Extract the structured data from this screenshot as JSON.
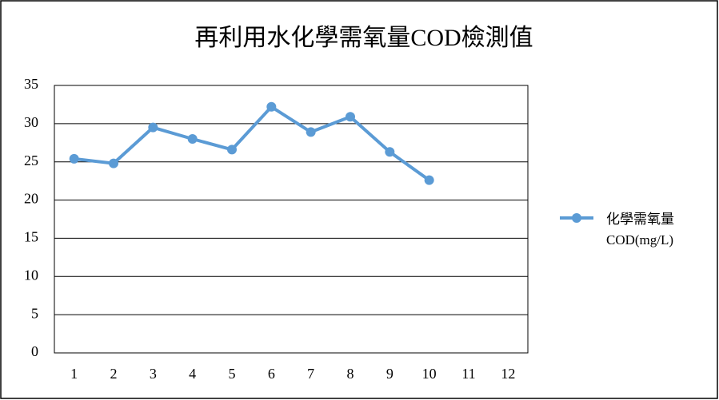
{
  "chart_data": {
    "type": "line",
    "title": "再利用水化學需氧量COD檢測值",
    "categories": [
      "1",
      "2",
      "3",
      "4",
      "5",
      "6",
      "7",
      "8",
      "9",
      "10",
      "11",
      "12"
    ],
    "series": [
      {
        "name": "化學需氧量COD(mg/L)",
        "color": "#5b9bd5",
        "values": [
          25.4,
          24.8,
          29.5,
          28.0,
          26.6,
          32.2,
          28.9,
          30.9,
          26.3,
          22.6,
          null,
          null
        ]
      }
    ],
    "ylim": [
      0,
      35
    ],
    "yticks": [
      0,
      5,
      10,
      15,
      20,
      25,
      30,
      35
    ],
    "grid": true,
    "legend": "right"
  }
}
